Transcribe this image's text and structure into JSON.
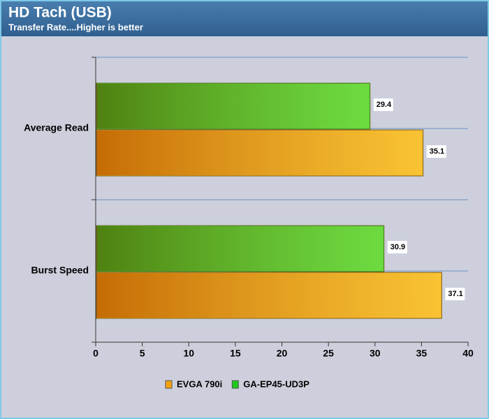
{
  "chart_data": {
    "type": "bar",
    "orientation": "horizontal",
    "title": "HD Tach (USB)",
    "subtitle": "Transfer Rate....Higher is better",
    "categories": [
      "Average Read",
      "Burst Speed"
    ],
    "series": [
      {
        "name": "EVGA 790i",
        "color": "#f5a20a",
        "values": [
          35.1,
          37.1
        ]
      },
      {
        "name": "GA-EP45-UD3P",
        "color": "#1ec81e",
        "values": [
          29.4,
          30.9
        ]
      }
    ],
    "xlim": [
      0,
      40
    ],
    "xticks": [
      0,
      5,
      10,
      15,
      20,
      25,
      30,
      35,
      40
    ],
    "grid": true
  }
}
